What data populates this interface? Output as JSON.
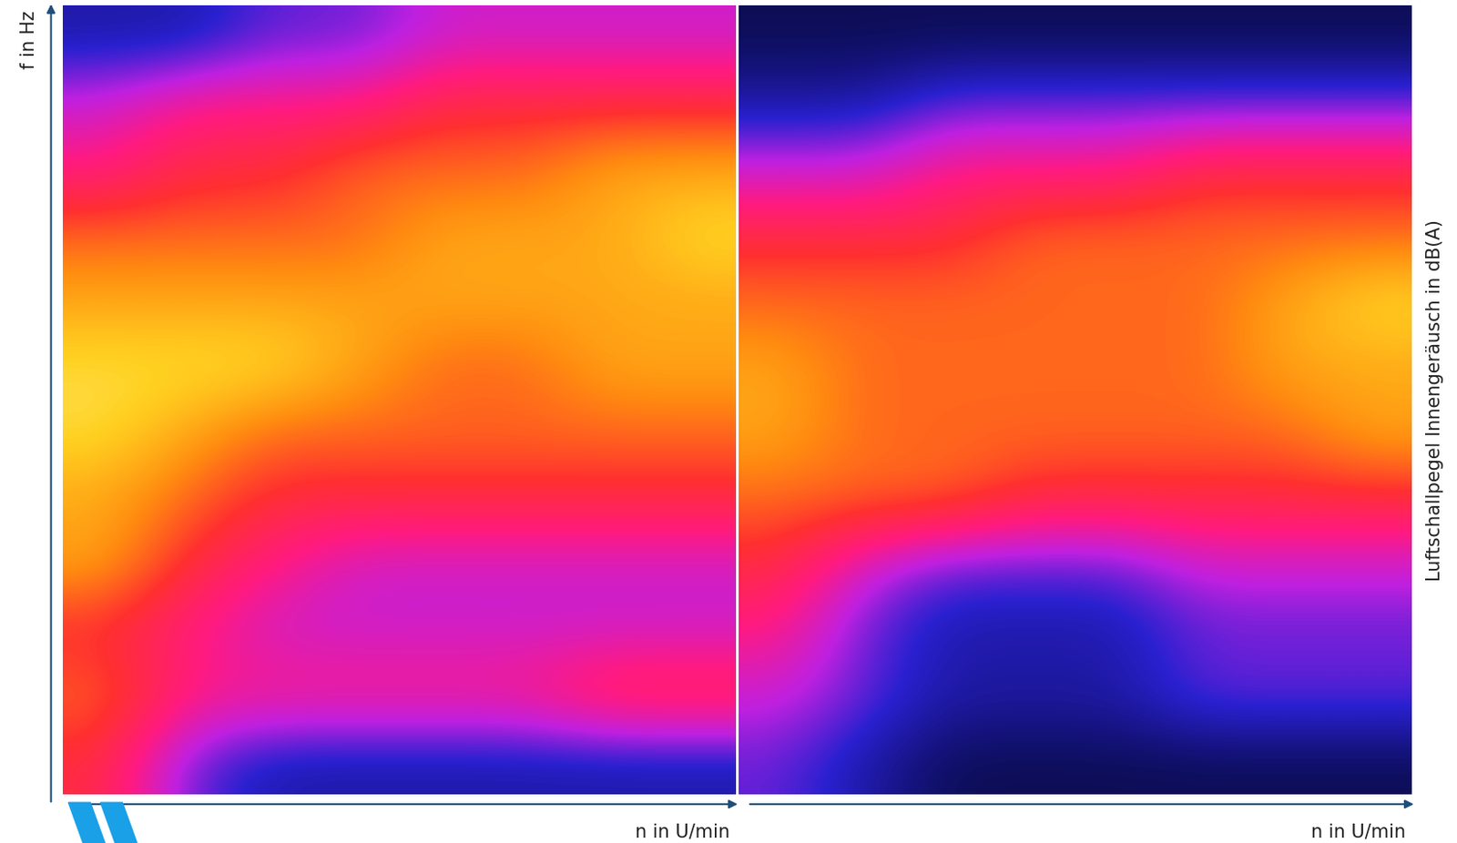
{
  "chart_data": [
    {
      "type": "heatmap",
      "x_label": "n in U/min",
      "y_label": "f in Hz",
      "tick_labels": false,
      "color_range": [
        0,
        10
      ],
      "cells": [
        [
          6,
          3,
          2,
          2,
          2,
          2,
          2,
          2
        ],
        [
          7,
          5,
          5,
          5,
          5,
          5,
          6,
          6
        ],
        [
          6,
          5,
          4,
          4,
          4,
          4,
          4,
          4
        ],
        [
          8,
          6,
          5,
          4,
          4,
          4,
          4,
          4
        ],
        [
          8,
          7,
          6,
          6,
          6,
          6,
          6,
          6
        ],
        [
          9,
          8,
          7,
          7,
          7,
          7,
          7,
          7
        ],
        [
          9,
          9,
          9,
          8,
          7,
          7,
          8,
          8
        ],
        [
          8,
          8,
          8,
          8,
          8,
          8,
          8,
          8
        ],
        [
          7,
          7,
          7,
          7,
          8,
          8,
          8,
          9
        ],
        [
          5,
          6,
          6,
          7,
          7,
          7,
          8,
          8
        ],
        [
          4,
          5,
          5,
          5,
          6,
          6,
          6,
          6
        ],
        [
          2,
          2,
          3,
          3,
          4,
          4,
          4,
          4
        ]
      ]
    },
    {
      "type": "heatmap",
      "x_label": "n in U/min",
      "value_label": "Luftschallpegel Innengeräusch in dB(A)",
      "tick_labels": false,
      "color_range": [
        0,
        10
      ],
      "cells": [
        [
          3,
          2,
          1,
          1,
          1,
          1,
          1,
          1
        ],
        [
          4,
          3,
          2,
          2,
          2,
          3,
          3,
          3
        ],
        [
          5,
          3,
          2,
          2,
          2,
          3,
          3,
          3
        ],
        [
          6,
          4,
          3,
          3,
          3,
          4,
          4,
          4
        ],
        [
          7,
          7,
          7,
          6,
          6,
          6,
          6,
          6
        ],
        [
          8,
          7,
          7,
          7,
          7,
          7,
          7,
          8
        ],
        [
          8,
          7,
          7,
          7,
          7,
          7,
          8,
          8
        ],
        [
          7,
          7,
          7,
          7,
          7,
          7,
          8,
          9
        ],
        [
          6,
          6,
          6,
          7,
          7,
          7,
          7,
          7
        ],
        [
          4,
          4,
          5,
          5,
          5,
          6,
          6,
          6
        ],
        [
          2,
          2,
          3,
          3,
          3,
          3,
          3,
          3
        ],
        [
          1,
          1,
          1,
          1,
          1,
          1,
          1,
          1
        ]
      ]
    }
  ]
}
